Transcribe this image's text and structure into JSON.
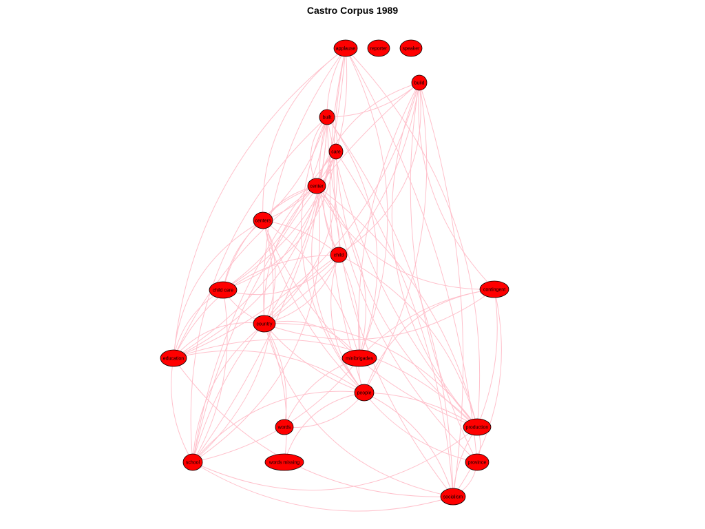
{
  "title": "Castro Corpus 1989",
  "colors": {
    "node_fill": "#ff0000",
    "node_stroke": "#000000",
    "edge": "#ffc0cb"
  },
  "nodes": [
    {
      "id": "applause",
      "label": "applause"
    },
    {
      "id": "reporter",
      "label": "reporter"
    },
    {
      "id": "speaker",
      "label": "speaker"
    },
    {
      "id": "build",
      "label": "build"
    },
    {
      "id": "built",
      "label": "built"
    },
    {
      "id": "care",
      "label": "care"
    },
    {
      "id": "center",
      "label": "center"
    },
    {
      "id": "centers",
      "label": "centers"
    },
    {
      "id": "child",
      "label": "child"
    },
    {
      "id": "child_care",
      "label": "child care"
    },
    {
      "id": "contingent",
      "label": "contingent"
    },
    {
      "id": "country",
      "label": "country"
    },
    {
      "id": "education",
      "label": "education"
    },
    {
      "id": "minibrigades",
      "label": "minibrigades"
    },
    {
      "id": "people",
      "label": "people"
    },
    {
      "id": "words",
      "label": "words"
    },
    {
      "id": "production",
      "label": "production"
    },
    {
      "id": "school",
      "label": "school"
    },
    {
      "id": "words_missing",
      "label": "words missing"
    },
    {
      "id": "province",
      "label": "province"
    },
    {
      "id": "socialism",
      "label": "socialism"
    }
  ],
  "edges": [
    [
      "applause",
      "built"
    ],
    [
      "applause",
      "school"
    ],
    [
      "applause",
      "education"
    ],
    [
      "applause",
      "production"
    ],
    [
      "applause",
      "socialism"
    ],
    [
      "applause",
      "province"
    ],
    [
      "applause",
      "country"
    ],
    [
      "applause",
      "minibrigades"
    ],
    [
      "applause",
      "centers"
    ],
    [
      "applause",
      "child_care"
    ],
    [
      "applause",
      "people"
    ],
    [
      "build",
      "built"
    ],
    [
      "build",
      "school"
    ],
    [
      "build",
      "education"
    ],
    [
      "build",
      "production"
    ],
    [
      "build",
      "socialism"
    ],
    [
      "build",
      "province"
    ],
    [
      "build",
      "country"
    ],
    [
      "build",
      "center"
    ],
    [
      "build",
      "child"
    ],
    [
      "build",
      "minibrigades"
    ],
    [
      "build",
      "people"
    ],
    [
      "build",
      "contingent"
    ],
    [
      "built",
      "care"
    ],
    [
      "built",
      "center"
    ],
    [
      "built",
      "centers"
    ],
    [
      "built",
      "child"
    ],
    [
      "built",
      "child_care"
    ],
    [
      "built",
      "school"
    ],
    [
      "built",
      "education"
    ],
    [
      "built",
      "production"
    ],
    [
      "built",
      "socialism"
    ],
    [
      "built",
      "province"
    ],
    [
      "built",
      "minibrigades"
    ],
    [
      "built",
      "people"
    ],
    [
      "built",
      "country"
    ],
    [
      "care",
      "center"
    ],
    [
      "care",
      "centers"
    ],
    [
      "care",
      "child"
    ],
    [
      "care",
      "child_care"
    ],
    [
      "care",
      "school"
    ],
    [
      "care",
      "education"
    ],
    [
      "care",
      "production"
    ],
    [
      "care",
      "country"
    ],
    [
      "care",
      "people"
    ],
    [
      "care",
      "socialism"
    ],
    [
      "center",
      "centers"
    ],
    [
      "center",
      "child"
    ],
    [
      "center",
      "child_care"
    ],
    [
      "center",
      "school"
    ],
    [
      "center",
      "education"
    ],
    [
      "center",
      "production"
    ],
    [
      "center",
      "country"
    ],
    [
      "center",
      "minibrigades"
    ],
    [
      "center",
      "contingent"
    ],
    [
      "centers",
      "child"
    ],
    [
      "centers",
      "child_care"
    ],
    [
      "centers",
      "country"
    ],
    [
      "centers",
      "education"
    ],
    [
      "centers",
      "school"
    ],
    [
      "centers",
      "people"
    ],
    [
      "centers",
      "minibrigades"
    ],
    [
      "centers",
      "production"
    ],
    [
      "child",
      "country"
    ],
    [
      "child",
      "education"
    ],
    [
      "child",
      "minibrigades"
    ],
    [
      "child",
      "school"
    ],
    [
      "child",
      "production"
    ],
    [
      "child",
      "people"
    ],
    [
      "child",
      "child_care"
    ],
    [
      "child_care",
      "country"
    ],
    [
      "child_care",
      "school"
    ],
    [
      "child_care",
      "education"
    ],
    [
      "contingent",
      "country"
    ],
    [
      "contingent",
      "people"
    ],
    [
      "contingent",
      "production"
    ],
    [
      "contingent",
      "minibrigades"
    ],
    [
      "contingent",
      "socialism"
    ],
    [
      "country",
      "education"
    ],
    [
      "country",
      "minibrigades"
    ],
    [
      "country",
      "people"
    ],
    [
      "country",
      "words"
    ],
    [
      "country",
      "school"
    ],
    [
      "country",
      "production"
    ],
    [
      "country",
      "socialism"
    ],
    [
      "country",
      "words_missing"
    ],
    [
      "education",
      "school"
    ],
    [
      "education",
      "people"
    ],
    [
      "education",
      "socialism"
    ],
    [
      "education",
      "production"
    ],
    [
      "minibrigades",
      "people"
    ],
    [
      "minibrigades",
      "school"
    ],
    [
      "minibrigades",
      "words"
    ],
    [
      "people",
      "words"
    ],
    [
      "people",
      "words_missing"
    ],
    [
      "people",
      "production"
    ],
    [
      "people",
      "province"
    ],
    [
      "people",
      "socialism"
    ],
    [
      "people",
      "school"
    ],
    [
      "production",
      "school"
    ],
    [
      "production",
      "socialism"
    ],
    [
      "production",
      "province"
    ],
    [
      "school",
      "socialism"
    ],
    [
      "province",
      "socialism"
    ]
  ]
}
